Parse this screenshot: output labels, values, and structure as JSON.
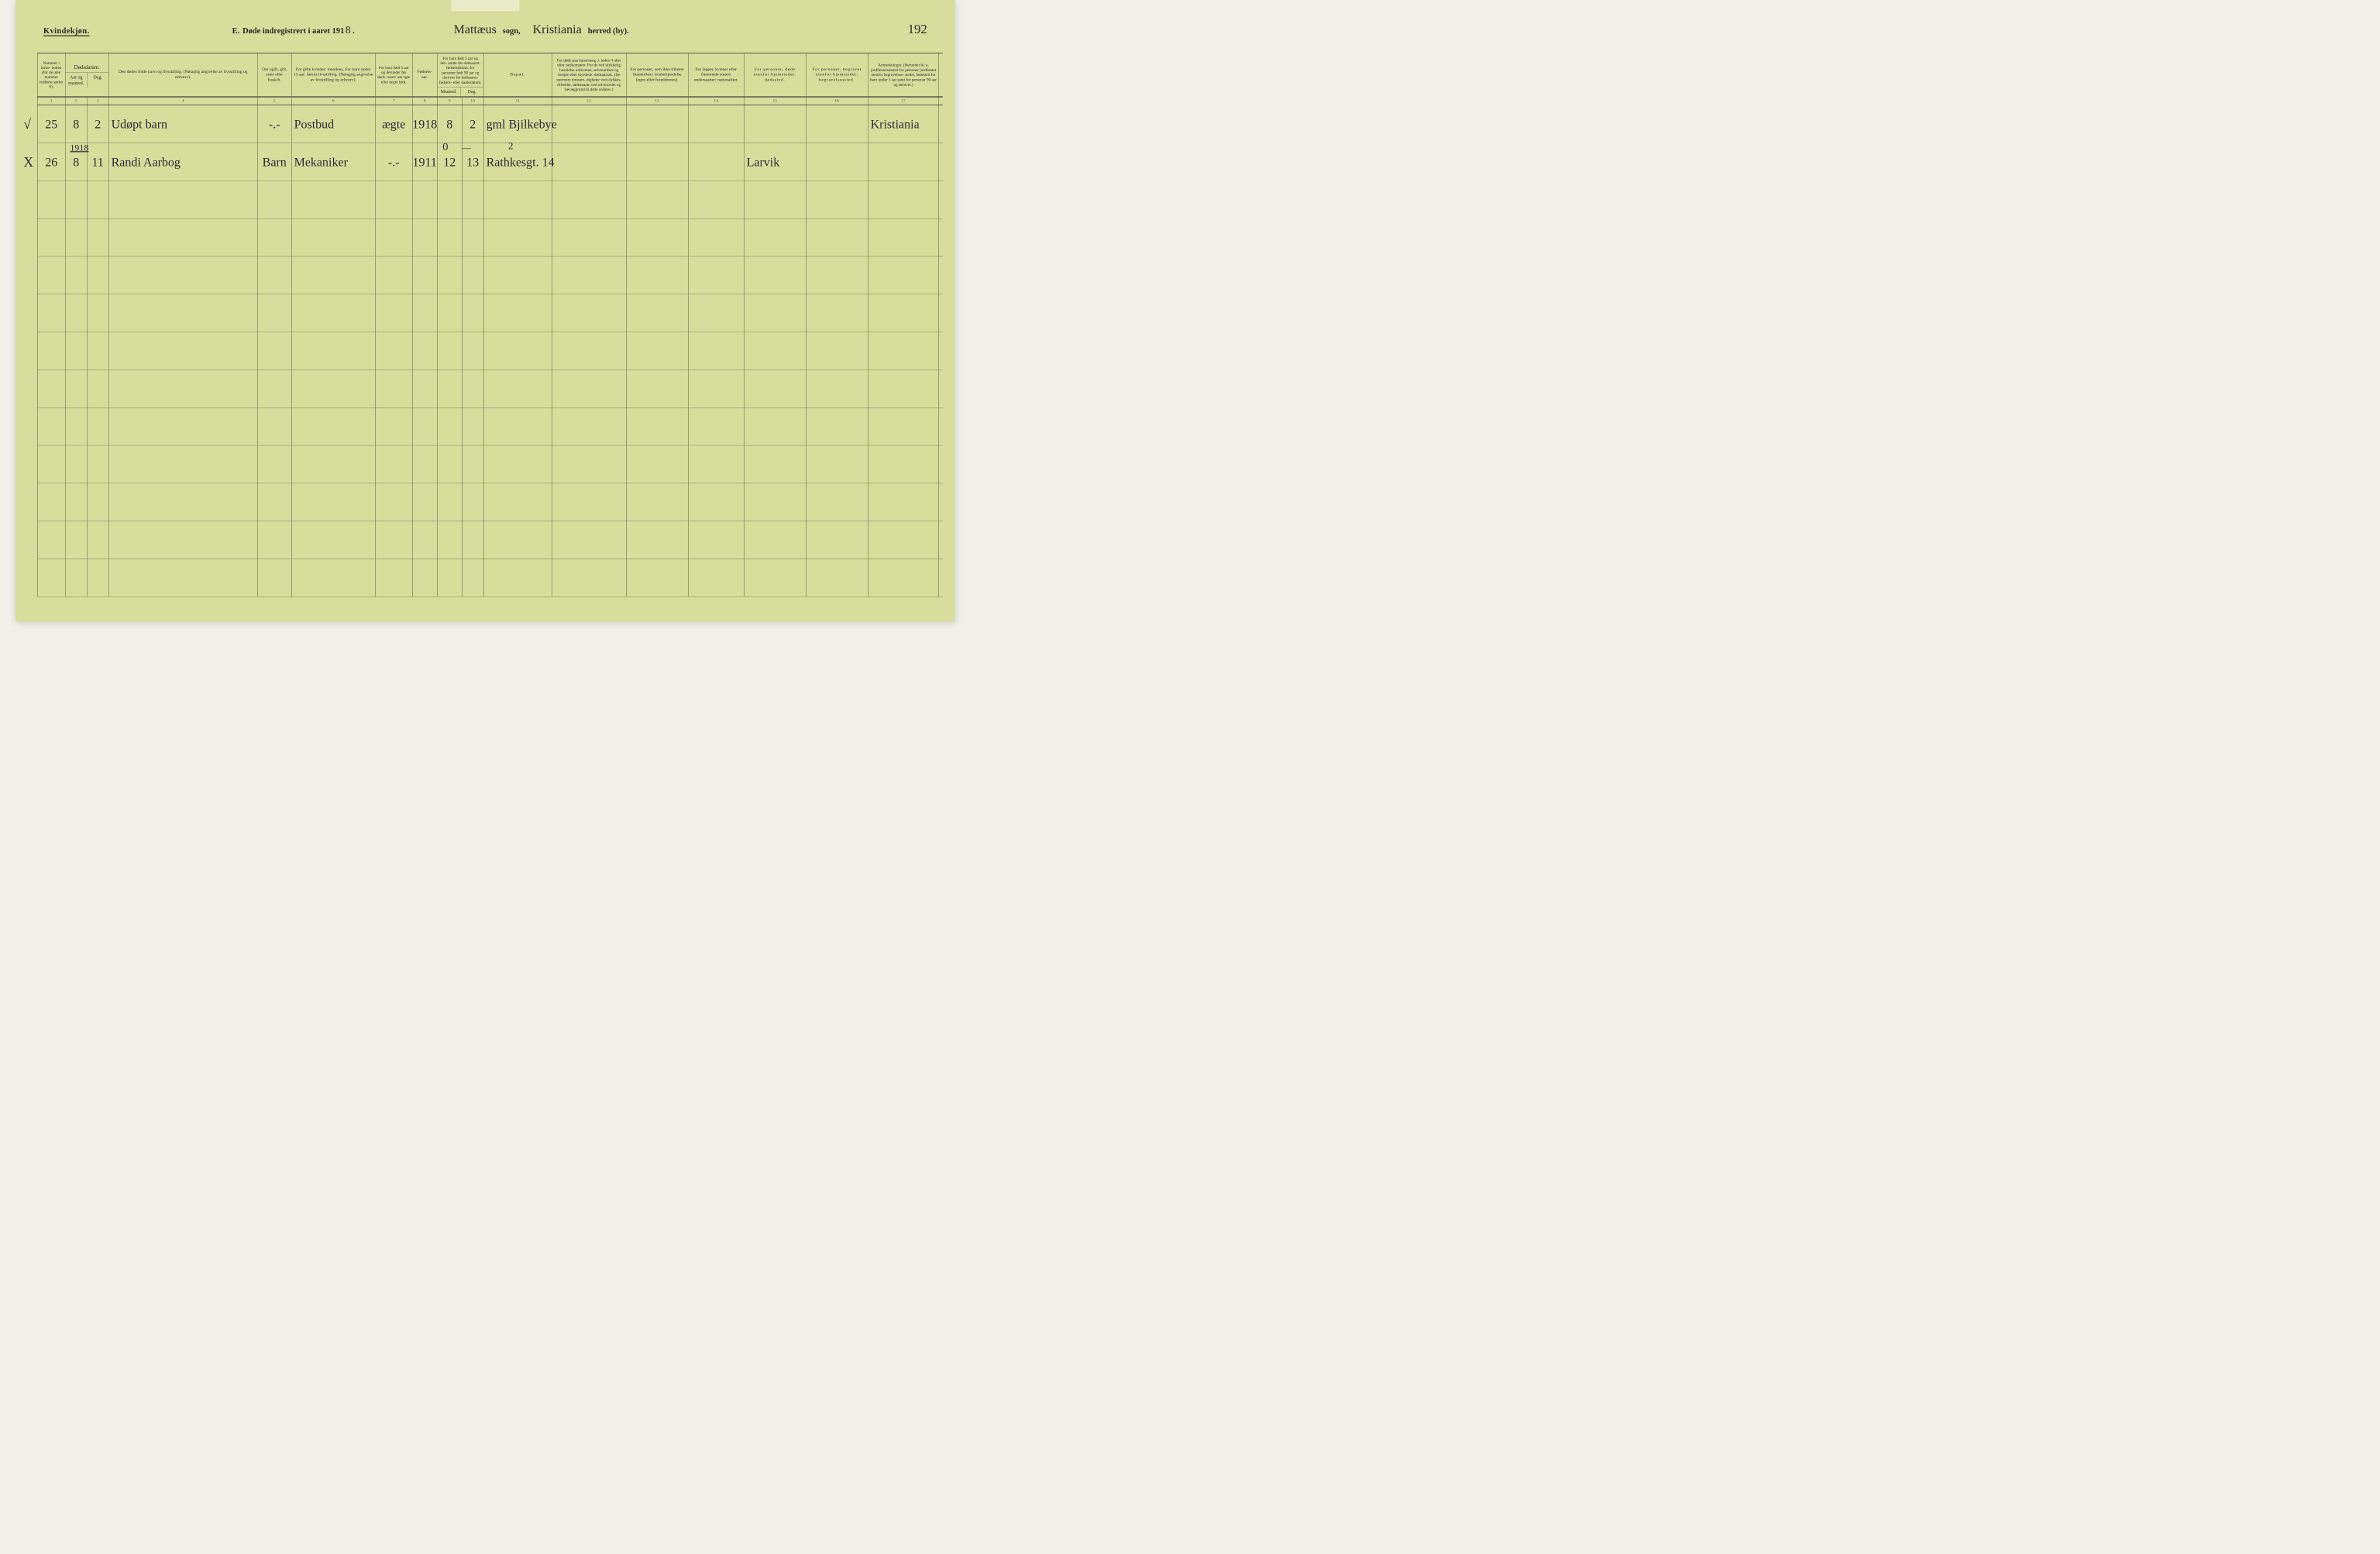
{
  "page_bg": "#d7dd9a",
  "ink_color": "#2a2a2a",
  "script_color": "#2b2b3a",
  "rule_color": "#3a3a3a",
  "header": {
    "gender": "Kvindekjøn.",
    "title_prefix": "E.",
    "title": "Døde indregistrert i aaret 191",
    "year_digit": "8",
    "period": ".",
    "sogn_value": "Mattæus",
    "sogn_label": "sogn,",
    "herred_value": "Kristiania",
    "herred_label": "herred (by).",
    "page_number": "192"
  },
  "columns": {
    "c1": {
      "label": "Nummer i kirke- boken (for de uten nummer indførte sættes 0).",
      "num": "1"
    },
    "c2": {
      "label": "Dødsdatum.",
      "sub_a": "Aar og maaned.",
      "sub_b": "Dag.",
      "num_a": "2",
      "num_b": "3"
    },
    "c3": {
      "label": "Den dødes fulde navn og livsstilling. (Nøiagtig angivelse av livsstilling og erhverv).",
      "num": "4"
    },
    "c4": {
      "label": "Om ugift, gift, enke eller fraskilt.",
      "num": "5"
    },
    "c5": {
      "label": "For gifte kvinder: mandens, For barn under 15 aar: farens livsstilling. (Nøiagtig angivelse av livsstilling og erhverv).",
      "num": "6"
    },
    "c6": {
      "label": "For barn født 5 aar og derunder før døds- aaret: om egte eller uegte født.",
      "num": "7"
    },
    "c7": {
      "label": "Fødsels- aar.",
      "num": "8"
    },
    "c8": {
      "label": "For barn født 5 aar og der- under før dødsaaret: fødselsdatum; for personer født 90 aar og derover før dødsaaret: fødsels- eller daabsdatum.",
      "sub_a": "Maaned.",
      "sub_b": "Dag.",
      "num_a": "9",
      "num_b": "10"
    },
    "c9": {
      "label": "Bopæl.",
      "num": "11"
    },
    "c10": {
      "label": "For døde paa barselseng ɔ: inden 4 uker efter nedkomsten: For de ved ulykkelig hændelse omkomne, selvmordere og dræpte eller myrdede: dødsaarsak. (De nærmere omstæn- digheter ved ulykkes- tilfældet, dødsmaate ved selvmordet og bevæggrund til dette anføres.)",
      "num": "12"
    },
    "c11": {
      "label": "For personer, som ikke tilhører Statskirken: trosbekjendelse (egen eller forældrenes).",
      "num": "13"
    },
    "c12": {
      "label": "For lapper, kvæner eller fremmede staters undersaatter: nationalitet.",
      "num": "14"
    },
    "c13": {
      "label": "For personer, døde utenfor hjemstedet: dødssted.",
      "num": "15"
    },
    "c14": {
      "label": "For personer, begravet utenfor hjemstedet: begravelsessted.",
      "num": "16"
    },
    "c15": {
      "label": "Anmerkninger. (Herunder bl. a. jordfæstelsessted for personer jordfæstet utenfor begravelses- stedet, fødested for barn under 1 aar samt for personer 90 aar og derover.)",
      "num": "17"
    }
  },
  "year_annotation": "1918",
  "correction_annotation_c8a": "0",
  "correction_annotation_c8b": "—",
  "correction_annotation_c9": "2",
  "rows": [
    {
      "marker": "√",
      "c1": "25",
      "c2a": "8",
      "c2b": "2",
      "c3": "Udøpt barn",
      "c4": "-.-",
      "c5": "Postbud",
      "c6": "ægte",
      "c7": "1918",
      "c8a": "8",
      "c8b": "2",
      "c9": "gml Bjilkebye",
      "c10": "",
      "c11": "",
      "c12": "",
      "c13": "",
      "c14": "",
      "c15": "Kristiania"
    },
    {
      "marker": "X",
      "c1": "26",
      "c2a": "8",
      "c2b": "11",
      "c3": "Randi Aarbog",
      "c4": "Barn",
      "c5": "Mekaniker",
      "c6": "-.-",
      "c7": "1911",
      "c8a": "12",
      "c8b": "13",
      "c9": "Rathkesgt. 14",
      "c10": "",
      "c11": "",
      "c12": "",
      "c13": "Larvik",
      "c14": "",
      "c15": ""
    },
    {},
    {},
    {},
    {},
    {},
    {},
    {},
    {},
    {},
    {},
    {}
  ]
}
